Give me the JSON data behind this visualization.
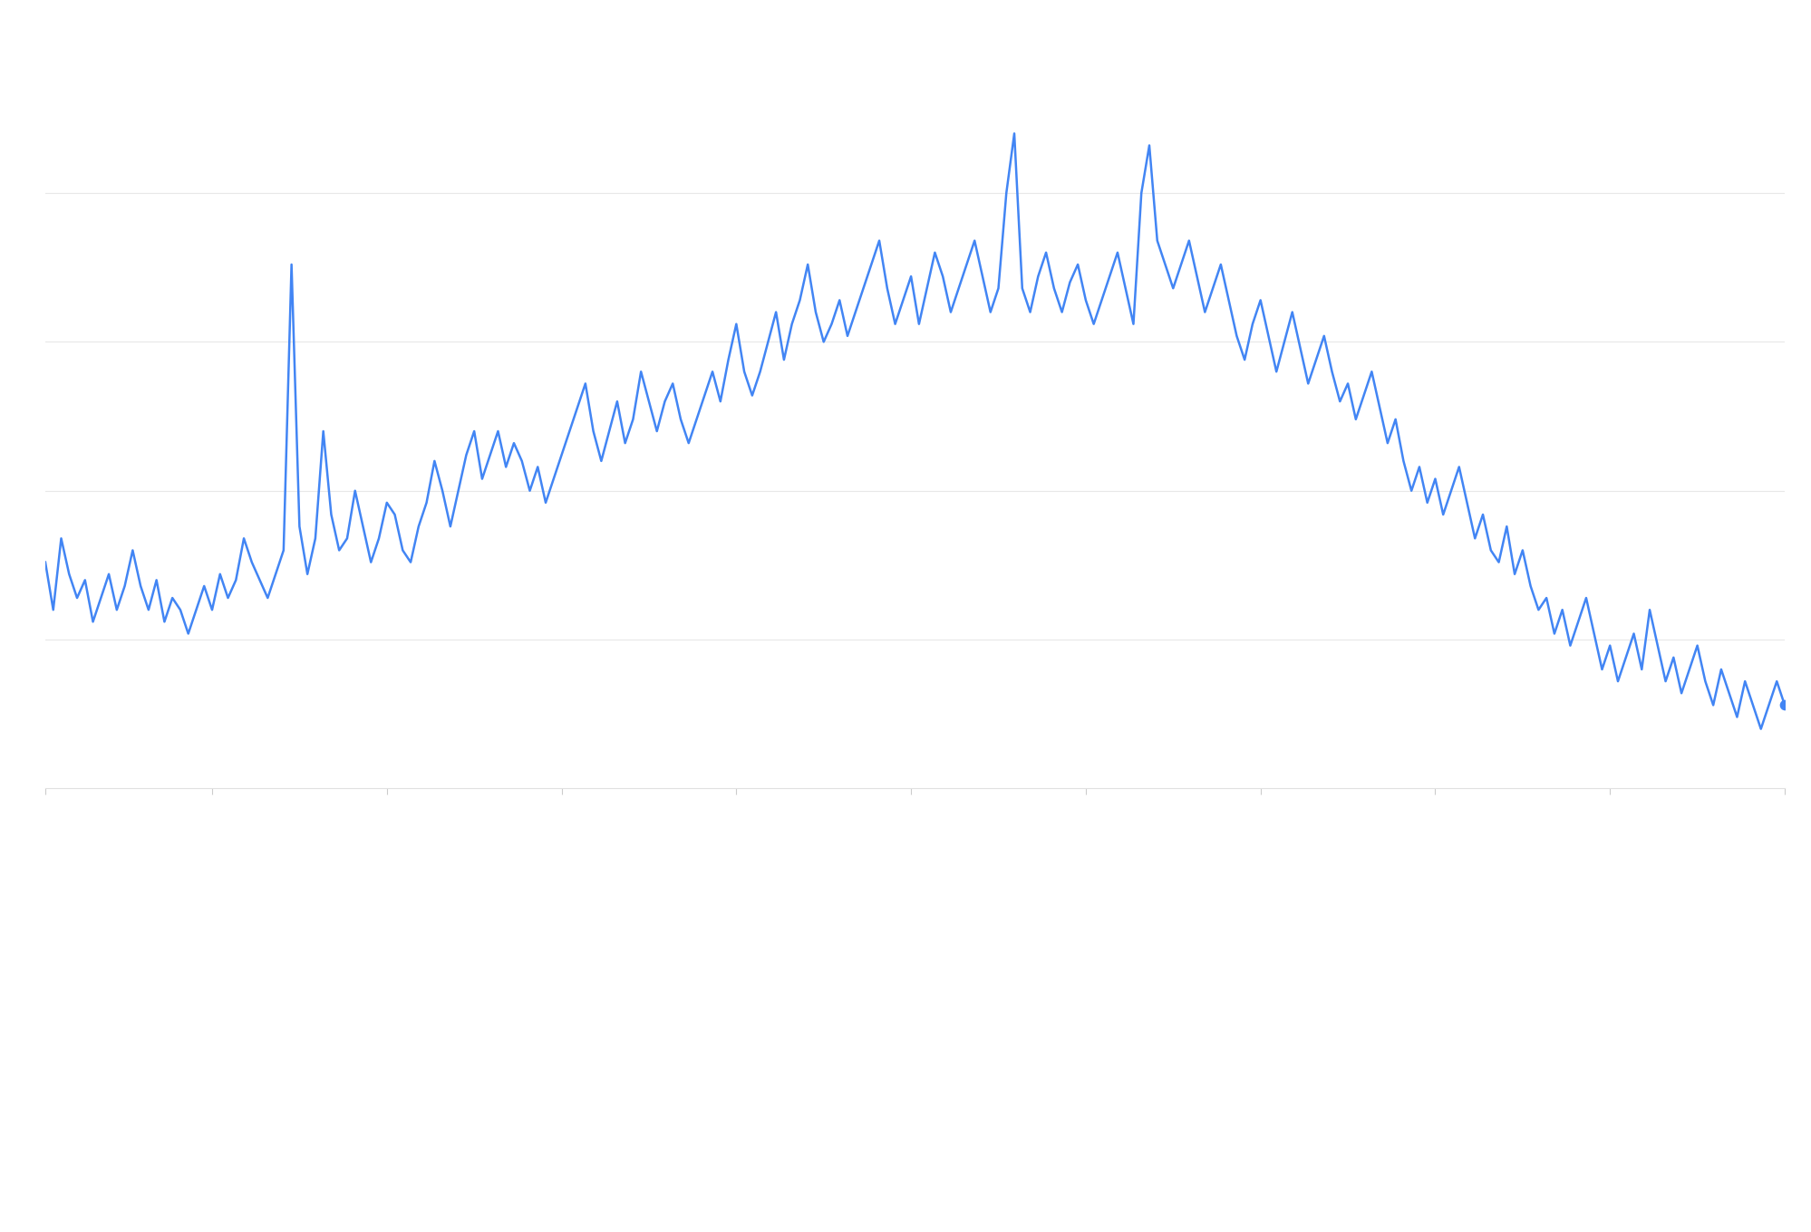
{
  "line_color": "#4285f4",
  "line_width": 1.8,
  "dot_color": "#4285f4",
  "dot_size": 55,
  "background_color": "#ffffff",
  "grid_color": "#e8e8e8",
  "grid_linewidth": 0.8,
  "ylim": [
    0,
    120
  ],
  "xlim": [
    0,
    219
  ],
  "figsize": [
    19.99,
    13.6
  ],
  "dpi": 100,
  "spine_color": "#e0e0e0",
  "plot_area_top": 0.06,
  "plot_area_height": 0.6,
  "values": [
    38,
    30,
    42,
    36,
    32,
    35,
    28,
    32,
    36,
    30,
    34,
    40,
    34,
    30,
    35,
    28,
    32,
    30,
    26,
    30,
    34,
    30,
    36,
    32,
    35,
    42,
    38,
    35,
    32,
    36,
    40,
    88,
    44,
    36,
    42,
    60,
    46,
    40,
    42,
    50,
    44,
    38,
    42,
    48,
    46,
    40,
    38,
    44,
    48,
    55,
    50,
    44,
    50,
    56,
    60,
    52,
    56,
    60,
    54,
    58,
    55,
    50,
    54,
    48,
    52,
    56,
    60,
    64,
    68,
    60,
    55,
    60,
    65,
    58,
    62,
    70,
    65,
    60,
    65,
    68,
    62,
    58,
    62,
    66,
    70,
    65,
    72,
    78,
    70,
    66,
    70,
    75,
    80,
    72,
    78,
    82,
    88,
    80,
    75,
    78,
    82,
    76,
    80,
    84,
    88,
    92,
    84,
    78,
    82,
    86,
    78,
    84,
    90,
    86,
    80,
    84,
    88,
    92,
    86,
    80,
    84,
    100,
    110,
    84,
    80,
    86,
    90,
    84,
    80,
    85,
    88,
    82,
    78,
    82,
    86,
    90,
    84,
    78,
    100,
    108,
    92,
    88,
    84,
    88,
    92,
    86,
    80,
    84,
    88,
    82,
    76,
    72,
    78,
    82,
    76,
    70,
    75,
    80,
    74,
    68,
    72,
    76,
    70,
    65,
    68,
    62,
    66,
    70,
    64,
    58,
    62,
    55,
    50,
    54,
    48,
    52,
    46,
    50,
    54,
    48,
    42,
    46,
    40,
    38,
    44,
    36,
    40,
    34,
    30,
    32,
    26,
    30,
    24,
    28,
    32,
    26,
    20,
    24,
    18,
    22,
    26,
    20,
    30,
    24,
    18,
    22,
    16,
    20,
    24,
    18,
    14,
    20,
    16,
    12,
    18,
    14,
    10,
    14,
    18,
    14
  ]
}
